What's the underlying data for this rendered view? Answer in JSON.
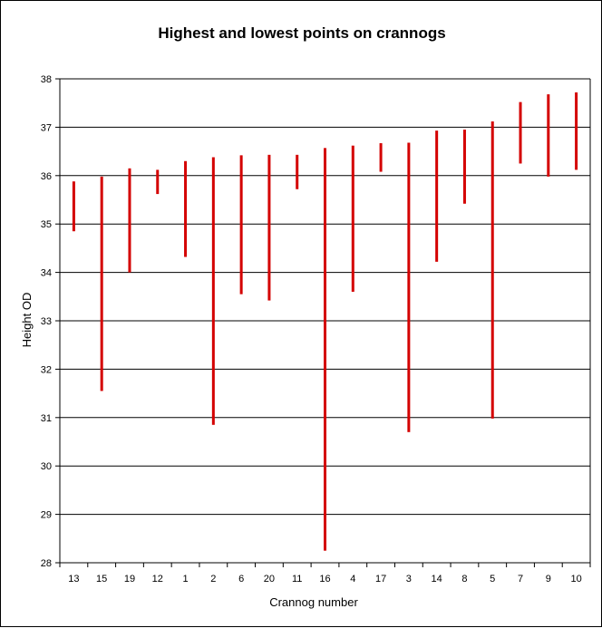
{
  "chart_data": {
    "type": "bar",
    "title": "Highest and lowest points on crannogs",
    "xlabel": "Crannog number",
    "ylabel": "Height OD",
    "ylim": [
      28,
      38
    ],
    "yticks": [
      "28",
      "29",
      "30",
      "31",
      "32",
      "33",
      "34",
      "35",
      "36",
      "37",
      "38"
    ],
    "grid": true,
    "categories": [
      "13",
      "15",
      "19",
      "12",
      "1",
      "2",
      "6",
      "20",
      "11",
      "16",
      "4",
      "17",
      "3",
      "14",
      "8",
      "5",
      "7",
      "9",
      "10"
    ],
    "series": [
      {
        "values_low": [
          34.85,
          31.55,
          34.0,
          35.62,
          34.32,
          30.85,
          33.55,
          33.42,
          35.72,
          28.25,
          33.6,
          36.08,
          30.7,
          34.22,
          35.42,
          30.98,
          36.25,
          35.98,
          36.12
        ]
      },
      {
        "values_high": [
          35.88,
          35.98,
          36.15,
          36.12,
          36.3,
          36.38,
          36.42,
          36.43,
          36.43,
          36.57,
          36.62,
          36.67,
          36.68,
          36.93,
          36.95,
          37.12,
          37.52,
          37.68,
          37.72
        ]
      }
    ],
    "colors": {
      "bar": "#d40000",
      "grid": "#000000",
      "text": "#000000"
    }
  }
}
